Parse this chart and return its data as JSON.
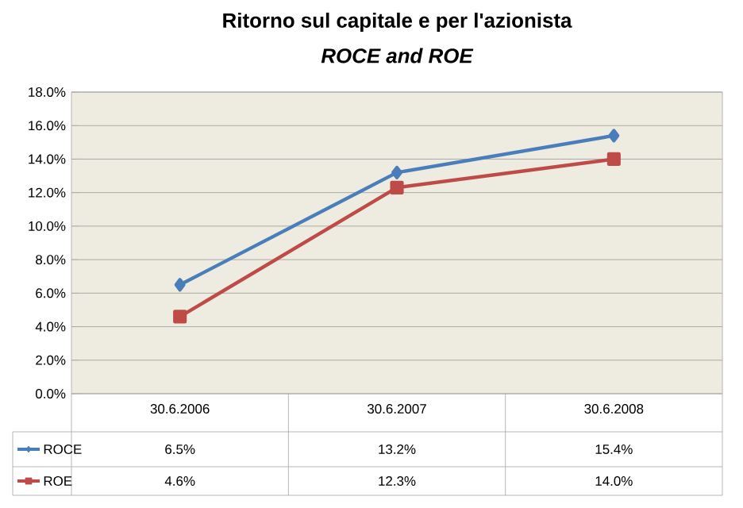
{
  "chart_data": {
    "type": "line",
    "title": "Ritorno sul capitale e per l'azionista",
    "subtitle": "ROCE and ROE",
    "categories": [
      "30.6.2006",
      "30.6.2007",
      "30.6.2008"
    ],
    "series": [
      {
        "name": "ROCE",
        "color": "#4a7ebb",
        "marker": "diamond",
        "values": [
          6.5,
          13.2,
          15.4
        ],
        "value_labels": [
          "6.5%",
          "13.2%",
          "15.4%"
        ]
      },
      {
        "name": "ROE",
        "color": "#be4b48",
        "marker": "square",
        "values": [
          4.6,
          12.3,
          14.0
        ],
        "value_labels": [
          "4.6%",
          "12.3%",
          "14.0%"
        ]
      }
    ],
    "ylim": [
      0,
      18
    ],
    "yticks": [
      {
        "value": 0,
        "label": "0.0%"
      },
      {
        "value": 2,
        "label": "2.0%"
      },
      {
        "value": 4,
        "label": "4.0%"
      },
      {
        "value": 6,
        "label": "6.0%"
      },
      {
        "value": 8,
        "label": "8.0%"
      },
      {
        "value": 10,
        "label": "10.0%"
      },
      {
        "value": 12,
        "label": "12.0%"
      },
      {
        "value": 14,
        "label": "14.0%"
      },
      {
        "value": 16,
        "label": "16.0%"
      },
      {
        "value": 18,
        "label": "18.0%"
      }
    ],
    "grid": "y",
    "legend": "bottom",
    "line_style": "solid"
  }
}
